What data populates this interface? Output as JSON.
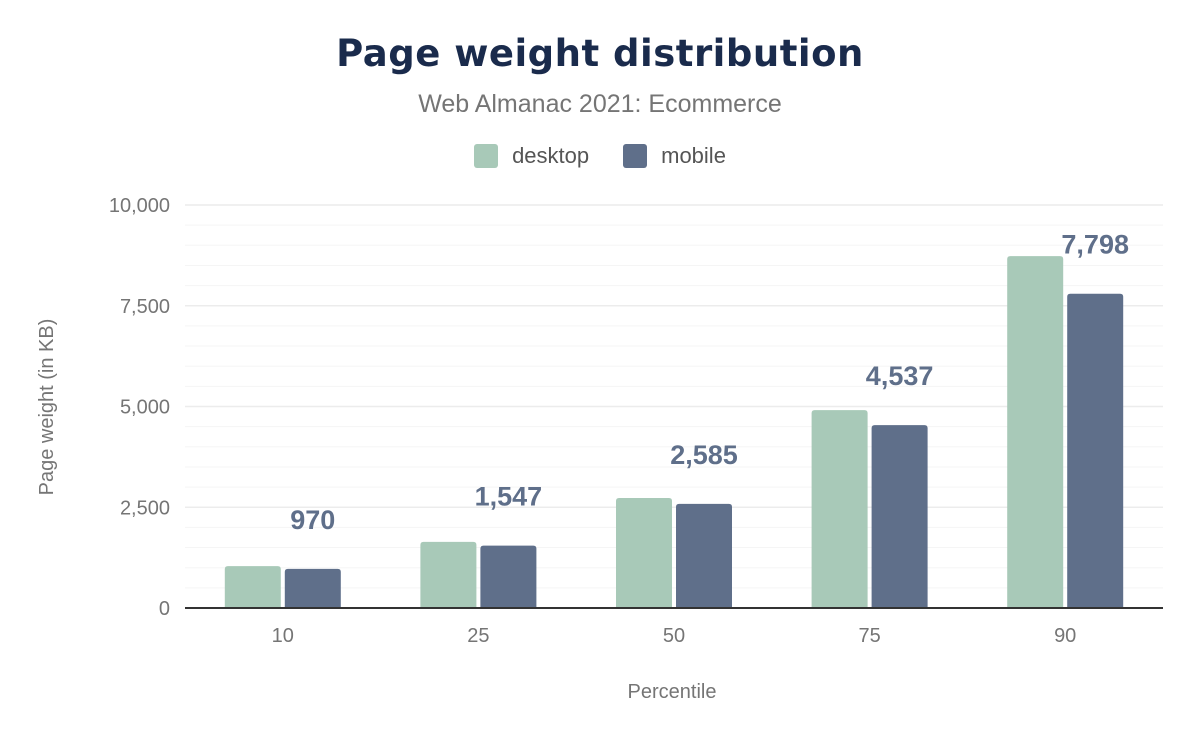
{
  "chart_data": {
    "type": "bar",
    "title": "Page weight distribution",
    "subtitle": "Web Almanac 2021: Ecommerce",
    "xlabel": "Percentile",
    "ylabel": "Page weight (in KB)",
    "ylim": [
      0,
      10000
    ],
    "yticks": [
      "0",
      "2,500",
      "5,000",
      "7,500",
      "10,000"
    ],
    "categories": [
      "10",
      "25",
      "50",
      "75",
      "90"
    ],
    "grid": true,
    "legend_position": "top",
    "series": [
      {
        "name": "desktop",
        "color": "#a8c9b8",
        "values": [
          1040,
          1640,
          2730,
          4910,
          8730
        ]
      },
      {
        "name": "mobile",
        "color": "#5f6f8a",
        "values": [
          970,
          1547,
          2585,
          4537,
          7798
        ],
        "labels": [
          "970",
          "1,547",
          "2,585",
          "4,537",
          "7,798"
        ]
      }
    ]
  }
}
